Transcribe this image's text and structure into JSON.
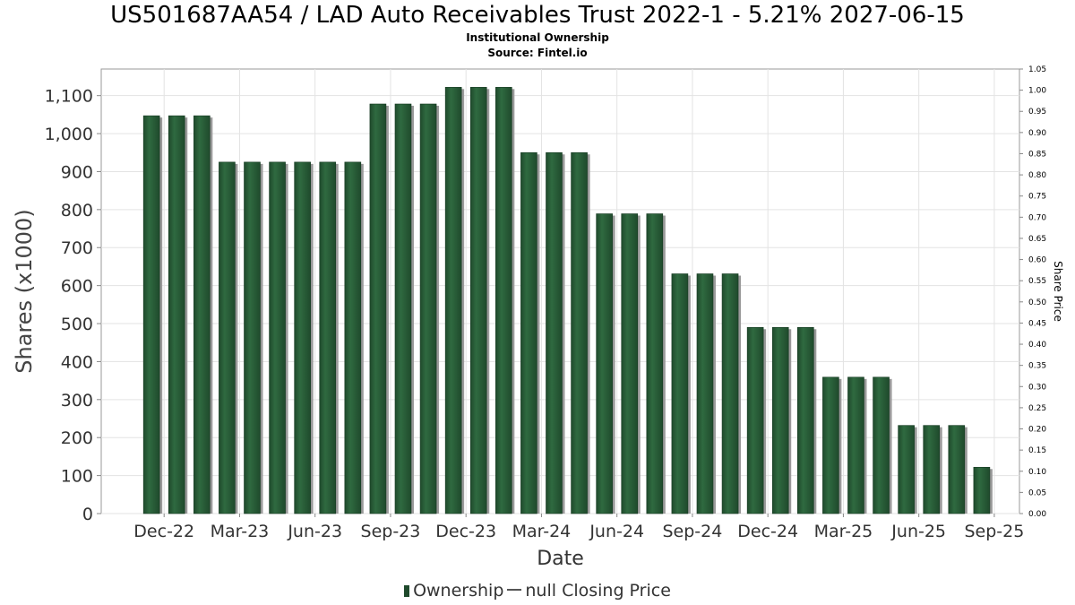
{
  "header": {
    "title": "US501687AA54 / LAD Auto Receivables Trust 2022-1 - 5.21% 2027-06-15",
    "subtitle": "Institutional Ownership",
    "source": "Source: Fintel.io"
  },
  "legend": {
    "ownership_label": "Ownership",
    "price_label": "null Closing Price"
  },
  "colors": {
    "bar": "#1f4a2c",
    "bar_highlight": "#2f6a40",
    "bar_shadow": "#9a9a9a",
    "grid": "#e3e3e3"
  },
  "chart_data": {
    "type": "bar",
    "title": "US501687AA54 / LAD Auto Receivables Trust 2022-1 - 5.21% 2027-06-15",
    "subtitle": "Institutional Ownership",
    "xlabel": "Date",
    "ylabel": "Shares (x1000)",
    "y2label": "Share Price",
    "ylim": [
      0,
      1170
    ],
    "y2lim": [
      0,
      1.05
    ],
    "yticks": [
      0,
      100,
      200,
      300,
      400,
      500,
      600,
      700,
      800,
      900,
      1000,
      1100
    ],
    "ytick_labels": [
      "0",
      "100",
      "200",
      "300",
      "400",
      "500",
      "600",
      "700",
      "800",
      "900",
      "1,000",
      "1,100"
    ],
    "y2ticks": [
      0.0,
      0.05,
      0.1,
      0.15,
      0.2,
      0.25,
      0.3,
      0.35,
      0.4,
      0.45,
      0.5,
      0.55,
      0.6,
      0.65,
      0.7,
      0.75,
      0.8,
      0.85,
      0.9,
      0.95,
      1.0,
      1.05
    ],
    "y2tick_labels": [
      "0.00",
      "0.05",
      "0.10",
      "0.15",
      "0.20",
      "0.25",
      "0.30",
      "0.35",
      "0.40",
      "0.45",
      "0.50",
      "0.55",
      "0.60",
      "0.65",
      "0.70",
      "0.75",
      "0.80",
      "0.85",
      "0.90",
      "0.95",
      "1.00",
      "1.05"
    ],
    "xtick_labels": [
      "Dec-22",
      "Mar-23",
      "Jun-23",
      "Sep-23",
      "Dec-23",
      "Mar-24",
      "Jun-24",
      "Sep-24",
      "Dec-24",
      "Mar-25",
      "Jun-25",
      "Sep-25"
    ],
    "grid": true,
    "legend_position": "bottom",
    "series": [
      {
        "name": "Ownership",
        "values": [
          1047,
          1047,
          1047,
          925,
          925,
          925,
          925,
          925,
          925,
          1078,
          1078,
          1078,
          1122,
          1122,
          1122,
          950,
          950,
          950,
          789,
          789,
          789,
          631,
          631,
          631,
          490,
          490,
          490,
          359,
          359,
          359,
          232,
          232,
          232,
          122
        ]
      }
    ]
  }
}
